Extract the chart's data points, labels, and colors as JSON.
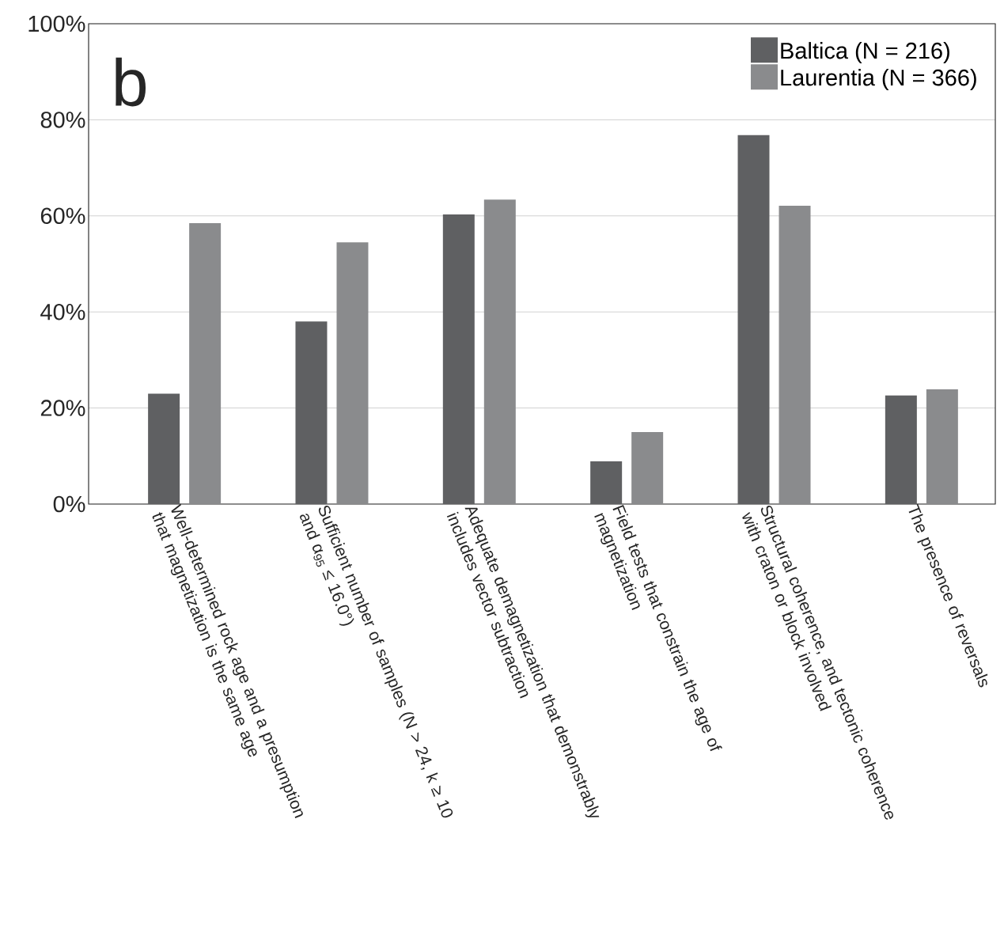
{
  "chart_data": {
    "type": "bar",
    "annotations": [
      "b"
    ],
    "categories": [
      "Well-determined rock age and a presumption that magnetization is the same age",
      "Sufficient number of samples (N > 24, k ≥ 10 and α$_{95}$ ≤ 16.0°)",
      "Adequate demagnetization that demonstrably includes vector subtraction",
      "Field tests that constrain the age of magnetization",
      "Structural coherence, and tectonic coherence with craton or block involved",
      "The presence of reversals"
    ],
    "series": [
      {
        "name": "Baltica (N = 216)",
        "color": "#5f6062",
        "values": [
          23,
          38,
          60.3,
          8.9,
          76.8,
          22.6
        ]
      },
      {
        "name": "Laurentia (N = 366)",
        "color": "#8a8b8d",
        "values": [
          58.5,
          54.5,
          63.4,
          15,
          62.1,
          23.9
        ]
      }
    ],
    "ylim": [
      0,
      100
    ],
    "yticks": [
      {
        "value": 0,
        "label": "0%"
      },
      {
        "value": 20,
        "label": "20%"
      },
      {
        "value": 40,
        "label": "40%"
      },
      {
        "value": 60,
        "label": "60%"
      },
      {
        "value": 80,
        "label": "80%"
      },
      {
        "value": 100,
        "label": "100%"
      }
    ],
    "grid": "y",
    "legend": "top right"
  }
}
